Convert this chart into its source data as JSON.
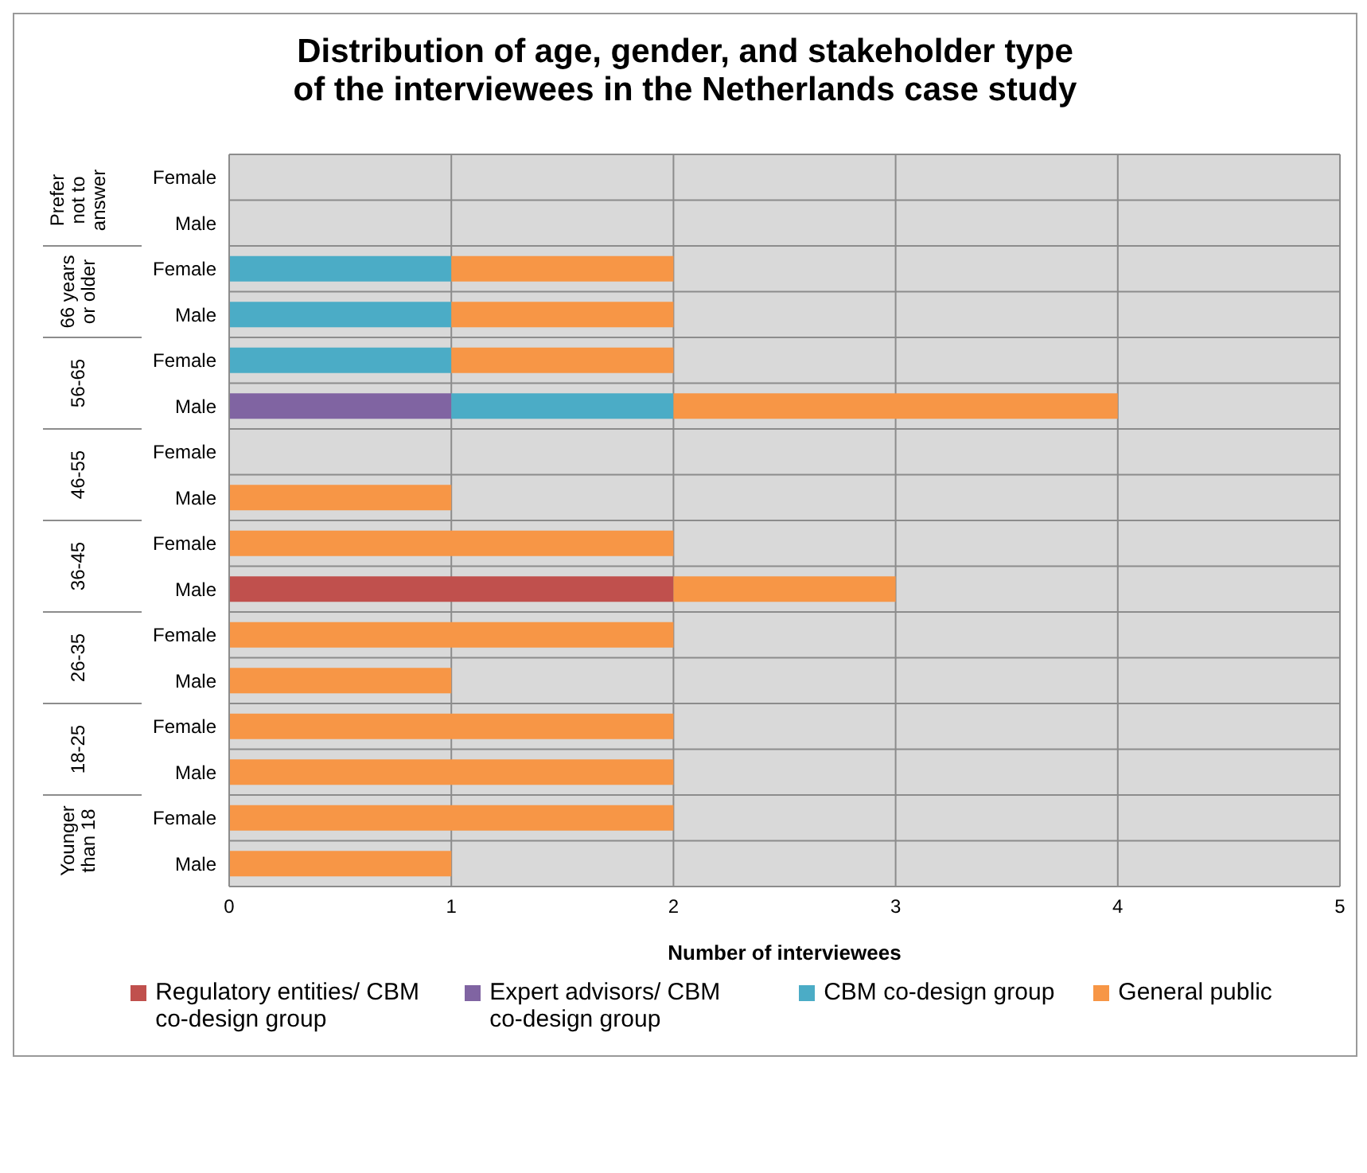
{
  "chart_data": {
    "type": "bar",
    "orientation": "horizontal",
    "stacked": true,
    "title": "Distribution of age, gender, and stakeholder type of the interviewees in the Netherlands case study",
    "xlabel": "Number of interviewees",
    "categories": [
      "Female",
      "Male",
      "Female",
      "Male",
      "Female",
      "Male",
      "Female",
      "Male",
      "Female",
      "Male",
      "Female",
      "Male",
      "Female",
      "Male",
      "Female",
      "Male"
    ],
    "annotations": [
      "Prefer not to answer",
      "66 years or older",
      "56-65",
      "46-55",
      "36-45",
      "26-35",
      "18-25",
      "Younger than 18"
    ],
    "series": [
      {
        "name": "Regulatory entities/ CBM co-design group",
        "color": "#c0504d",
        "values": [
          null,
          null,
          null,
          null,
          null,
          null,
          null,
          null,
          null,
          2,
          null,
          null,
          null,
          null,
          null,
          null
        ]
      },
      {
        "name": "Expert advisors/ CBM co-design group",
        "color": "#8064a2",
        "values": [
          null,
          null,
          null,
          null,
          null,
          1,
          null,
          null,
          null,
          null,
          null,
          null,
          null,
          null,
          null,
          null
        ]
      },
      {
        "name": "CBM co-design group",
        "color": "#4bacc6",
        "values": [
          null,
          null,
          1,
          1,
          1,
          1,
          null,
          null,
          null,
          null,
          null,
          null,
          null,
          null,
          null,
          null
        ]
      },
      {
        "name": "General public",
        "color": "#f79646",
        "values": [
          null,
          null,
          1,
          1,
          1,
          2,
          null,
          1,
          2,
          1,
          2,
          1,
          2,
          2,
          2,
          1
        ]
      }
    ],
    "xlim": [
      0,
      5
    ],
    "xticks": [
      0,
      1,
      2,
      3,
      4,
      5
    ],
    "grid": true,
    "legend": "bottom"
  }
}
